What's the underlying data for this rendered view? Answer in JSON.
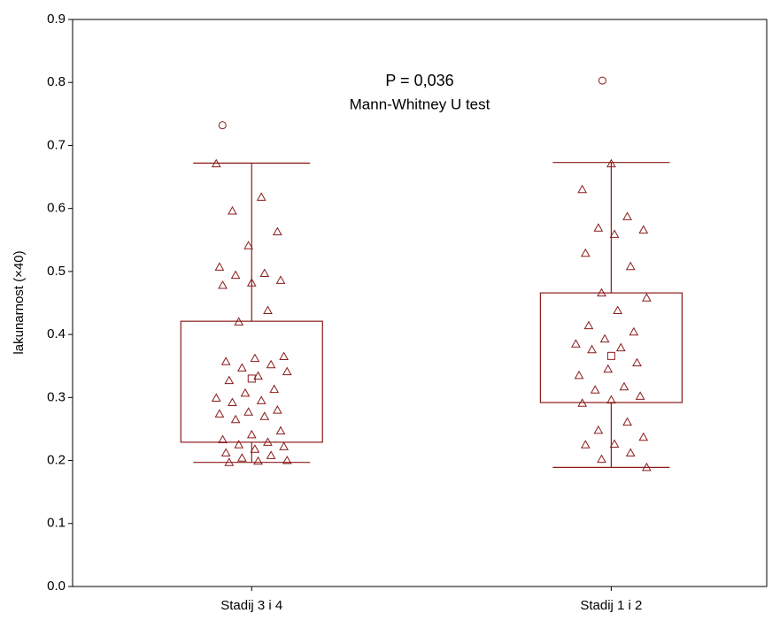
{
  "chart_data": {
    "type": "box",
    "annotations": [
      "P = 0,036",
      "Mann-Whitney U test"
    ],
    "ylabel": "lakunarnost (×40)",
    "categories": [
      "Stadij 3 i 4",
      "Stadij 1 i 2"
    ],
    "color": "#8b1a1a",
    "ylim": [
      0,
      0.9
    ],
    "yticks": [
      {
        "value": 0,
        "label": "0.0"
      },
      0.1,
      0.2,
      0.3,
      0.4,
      0.5,
      0.6,
      0.7,
      0.8,
      0.9
    ],
    "boxes": [
      {
        "whisker_low": 0.197,
        "q1": 0.229,
        "q3": 0.421,
        "whisker_high": 0.672,
        "mean": 0.33,
        "outliers": [
          0.732
        ],
        "points": [
          0.671,
          0.618,
          0.596,
          0.563,
          0.541,
          0.507,
          0.497,
          0.494,
          0.486,
          0.482,
          0.478,
          0.438,
          0.42,
          0.365,
          0.362,
          0.357,
          0.352,
          0.347,
          0.341,
          0.334,
          0.327,
          0.313,
          0.307,
          0.299,
          0.295,
          0.292,
          0.28,
          0.277,
          0.274,
          0.27,
          0.265,
          0.247,
          0.241,
          0.233,
          0.229,
          0.225,
          0.222,
          0.218,
          0.212,
          0.208,
          0.204,
          0.2,
          0.199,
          0.197
        ]
      },
      {
        "whisker_low": 0.189,
        "q1": 0.292,
        "q3": 0.466,
        "whisker_high": 0.673,
        "mean": 0.366,
        "outliers": [
          0.803
        ],
        "points": [
          0.671,
          0.63,
          0.587,
          0.569,
          0.566,
          0.559,
          0.529,
          0.508,
          0.466,
          0.458,
          0.438,
          0.414,
          0.404,
          0.393,
          0.385,
          0.379,
          0.376,
          0.355,
          0.345,
          0.335,
          0.317,
          0.312,
          0.302,
          0.296,
          0.291,
          0.261,
          0.248,
          0.237,
          0.226,
          0.225,
          0.212,
          0.202,
          0.189
        ]
      }
    ]
  }
}
